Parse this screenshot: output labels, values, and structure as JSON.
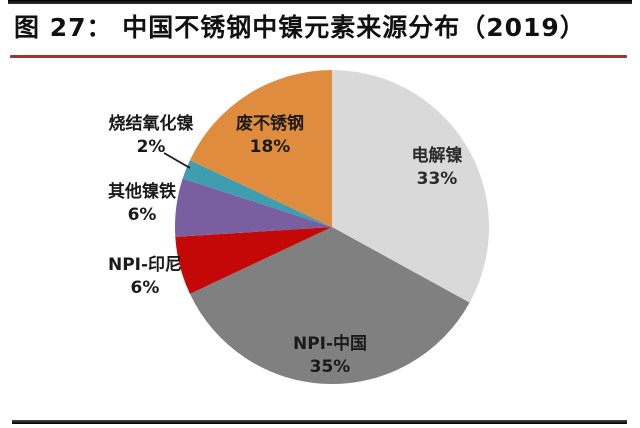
{
  "header": {
    "title": "图 27： 中国不锈钢中镍元素来源分布（2019）",
    "rule_color": "#953735"
  },
  "chart_data": {
    "type": "pie",
    "title": "中国不锈钢中镍元素来源分布（2019）",
    "start_angle_deg": 0,
    "direction": "clockwise",
    "unit": "%",
    "slices": [
      {
        "id": "electrolytic-nickel",
        "label": "电解镍",
        "value": 33,
        "pct_label": "33%",
        "color": "#D9D9D9",
        "label_placement": "inside"
      },
      {
        "id": "npi-china",
        "label": "NPI-中国",
        "value": 35,
        "pct_label": "35%",
        "color": "#808080",
        "label_placement": "inside"
      },
      {
        "id": "npi-indonesia",
        "label": "NPI-印尼",
        "value": 6,
        "pct_label": "6%",
        "color": "#C40808",
        "label_placement": "outside"
      },
      {
        "id": "other-ferronickel",
        "label": "其他镍铁",
        "value": 6,
        "pct_label": "6%",
        "color": "#7A5FA0",
        "label_placement": "outside"
      },
      {
        "id": "sintered-nickel-oxide",
        "label": "烧结氧化镍",
        "value": 2,
        "pct_label": "2%",
        "color": "#3E9EB0",
        "label_placement": "outside",
        "leader_line": true
      },
      {
        "id": "stainless-steel-scrap",
        "label": "废不锈钢",
        "value": 18,
        "pct_label": "18%",
        "color": "#E08C3E",
        "label_placement": "inside"
      }
    ]
  },
  "footer": {
    "bar_color": "#1c1c1c"
  }
}
